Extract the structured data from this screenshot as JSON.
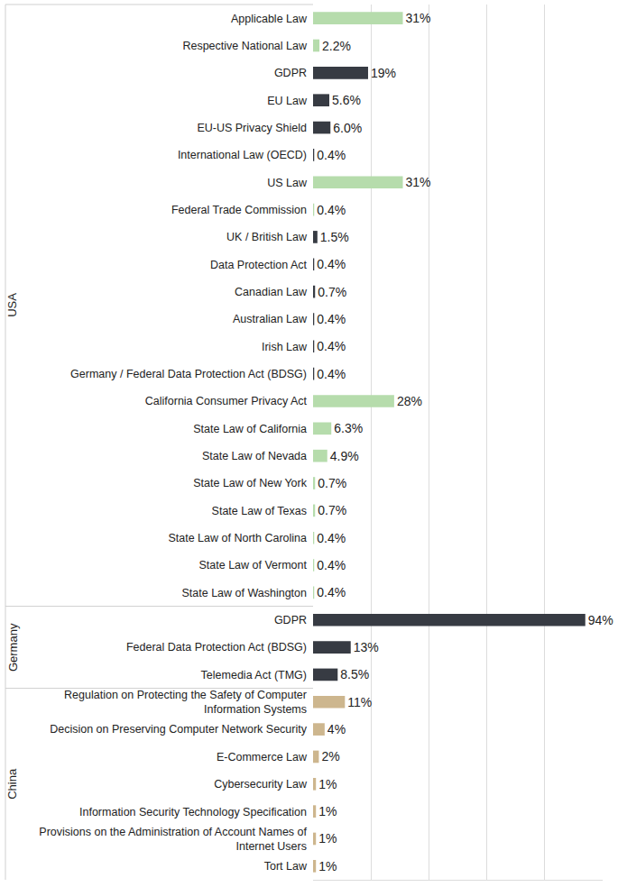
{
  "chart_data": {
    "type": "bar",
    "orientation": "horizontal",
    "categories": [
      "Applicable Law",
      "Respective National Law",
      "GDPR",
      "EU Law",
      "EU-US Privacy Shield",
      "International Law (OECD)",
      "US Law",
      "Federal Trade Commission",
      "UK / British Law",
      "Data Protection Act",
      "Canadian Law",
      "Australian Law",
      "Irish Law",
      "Germany / Federal Data Protection Act (BDSG)",
      "California Consumer Privacy Act",
      "State Law of California",
      "State Law of Nevada",
      "State Law of New York",
      "State Law of Texas",
      "State Law of North Carolina",
      "State Law of Vermont",
      "State Law of Washington",
      "GDPR",
      "Federal Data Protection Act (BDSG)",
      "Telemedia Act (TMG)",
      "Regulation on Protecting the Safety of Computer\nInformation Systems",
      "Decision on Preserving Computer Network Security",
      "E-Commerce Law",
      "Cybersecurity Law",
      "Information Security Technology Specification",
      "Provisions on the Administration of Account Names of\nInternet Users",
      "Tort Law"
    ],
    "groups": [
      "USA",
      "USA",
      "USA",
      "USA",
      "USA",
      "USA",
      "USA",
      "USA",
      "USA",
      "USA",
      "USA",
      "USA",
      "USA",
      "USA",
      "USA",
      "USA",
      "USA",
      "USA",
      "USA",
      "USA",
      "USA",
      "USA",
      "Germany",
      "Germany",
      "Germany",
      "China",
      "China",
      "China",
      "China",
      "China",
      "China",
      "China"
    ],
    "values": [
      31,
      2.2,
      19,
      5.6,
      6.0,
      0.4,
      31,
      0.4,
      1.5,
      0.4,
      0.7,
      0.4,
      0.4,
      0.4,
      28,
      6.3,
      4.9,
      0.7,
      0.7,
      0.4,
      0.4,
      0.4,
      94,
      13,
      8.5,
      11,
      4,
      2,
      1,
      1,
      1,
      1
    ],
    "value_labels": [
      "31%",
      "2.2%",
      "19%",
      "5.6%",
      "6.0%",
      "0.4%",
      "31%",
      "0.4%",
      "1.5%",
      "0.4%",
      "0.7%",
      "0.4%",
      "0.4%",
      "0.4%",
      "28%",
      "6.3%",
      "4.9%",
      "0.7%",
      "0.7%",
      "0.4%",
      "0.4%",
      "0.4%",
      "94%",
      "13%",
      "8.5%",
      "11%",
      "4%",
      "2%",
      "1%",
      "1%",
      "1%",
      "1%"
    ],
    "colors": [
      "#b6dcac",
      "#b6dcac",
      "#373b43",
      "#373b43",
      "#373b43",
      "#373b43",
      "#b6dcac",
      "#b6dcac",
      "#373b43",
      "#373b43",
      "#373b43",
      "#373b43",
      "#373b43",
      "#373b43",
      "#b6dcac",
      "#b6dcac",
      "#b6dcac",
      "#b6dcac",
      "#b6dcac",
      "#b6dcac",
      "#b6dcac",
      "#b6dcac",
      "#373b43",
      "#373b43",
      "#373b43",
      "#cdb68e",
      "#cdb68e",
      "#cdb68e",
      "#cdb68e",
      "#cdb68e",
      "#cdb68e",
      "#cdb68e"
    ],
    "xlim": [
      0,
      100
    ],
    "xticks": [
      0,
      20,
      40,
      60,
      80,
      100
    ],
    "grid": true,
    "data_labels": true,
    "tick_labels": "y"
  }
}
